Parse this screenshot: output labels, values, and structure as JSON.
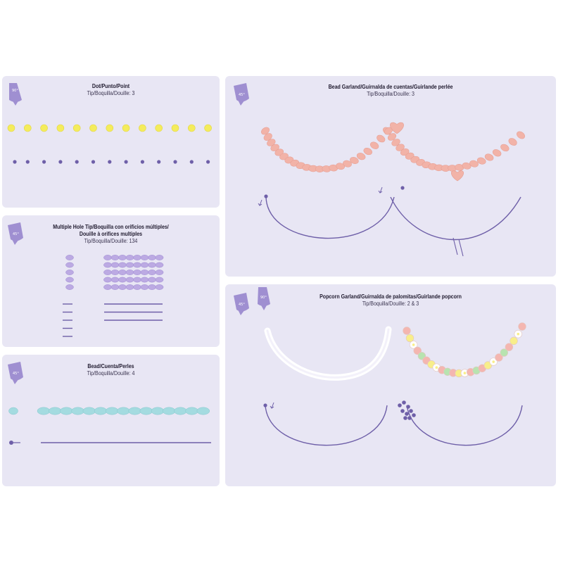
{
  "colors": {
    "panel_bg": "#e8e6f4",
    "bag": "#9f8fd1",
    "guide_line": "#6e5fa8",
    "dot_yellow": "#f4ec5c",
    "multi_hole": "#bcaae3",
    "bead_blue": "#a4dbe0",
    "garland_pink": "#f2b3a8",
    "popcorn_white": "#ffffff",
    "popcorn_pink": "#f4b6b0",
    "popcorn_yellow": "#f8ee8a",
    "popcorn_green": "#b8e3b0"
  },
  "icons": {
    "piping_bag": "piping-bag-icon",
    "arrow": "down-arrow-icon"
  },
  "panels": {
    "dot": {
      "title": "Dot/Punto/Point",
      "tip": "Tip/Boquilla/Douille: 3",
      "angle": "90°"
    },
    "multiple_hole": {
      "title_line1": "Multiple Hole Tip/Boquilla con orificios múltiples/",
      "title_line2": "Douille à orifices multiples",
      "tip": "Tip/Boquilla/Douille: 134",
      "angle": "45°"
    },
    "bead": {
      "title": "Bead/Cuenta/Perles",
      "tip": "Tip/Boquilla/Douille: 4",
      "angle": "45°"
    },
    "bead_garland": {
      "title": "Bead Garland/Guirnalda de cuentas/Guirlande perlée",
      "tip": "Tip/Boquilla/Douille: 3",
      "angle": "45°"
    },
    "popcorn_garland": {
      "title": "Popcorn Garland/Guirnalda de palomitas/Guirlande popcorn",
      "tip": "Tip/Boquilla/Douille: 2 & 3",
      "angle_1": "45°",
      "angle_2": "90°"
    }
  }
}
